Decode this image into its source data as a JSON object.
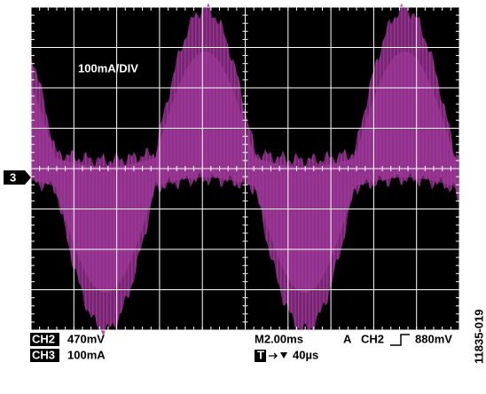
{
  "screen": {
    "scale_label": "100mA/DIV",
    "channel_marker": "3"
  },
  "footer": {
    "ch2_badge": "CH2",
    "ch2_scale": "470mV",
    "ch3_badge": "CH3",
    "ch3_scale": "100mA",
    "timebase": "M2.00ms",
    "trigger_mode": "A",
    "trigger_source": "CH2",
    "trigger_level": "880mV",
    "trigger_badge": "T",
    "trigger_position": "40µs"
  },
  "figure_id": "11835-019"
}
